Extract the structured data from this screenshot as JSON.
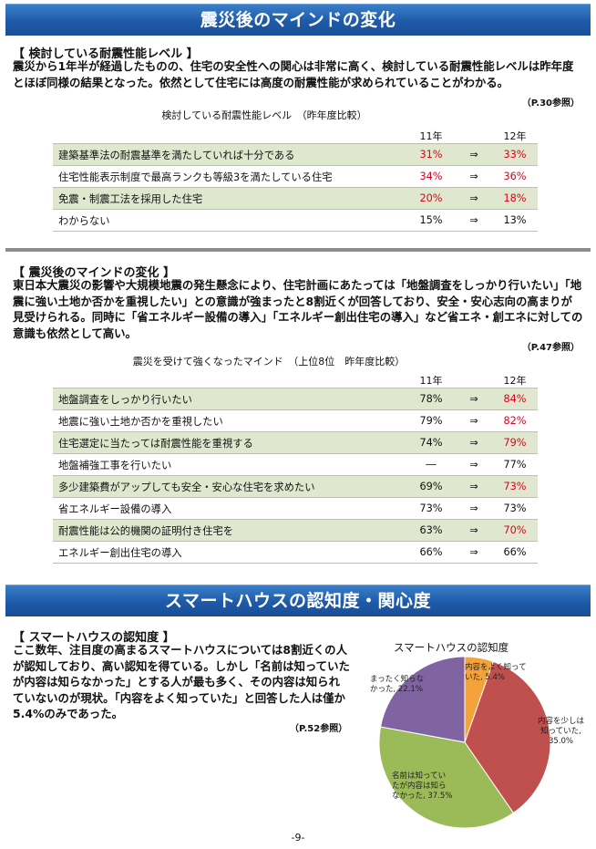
{
  "banner1": "震災後のマインドの変化",
  "sec1": {
    "title": "【 検討している耐震性能レベル 】",
    "para": "震災から1年半が経過したものの、住宅の安全性への関心は非常に高く、検討している耐震性能レベルは昨年度とほぼ同様の結果となった。依然として住宅には高度の耐震性能が求められていることがわかる。",
    "ref": "（P.30参照）",
    "caption": "検討している耐震性能レベル　（昨年度比較）",
    "col1": "11年",
    "col2": "12年",
    "rows": [
      {
        "label": "建築基準法の耐震基準を満たしていれば十分である",
        "v11": "31%",
        "arrow": "⇒",
        "v12": "33%"
      },
      {
        "label": "住宅性能表示制度で最高ランクも等級3を満たしている住宅",
        "v11": "34%",
        "arrow": "⇒",
        "v12": "36%"
      },
      {
        "label": "免震・制震工法を採用した住宅",
        "v11": "20%",
        "arrow": "⇒",
        "v12": "18%"
      },
      {
        "label": "わからない",
        "v11": "15%",
        "arrow": "⇒",
        "v12": "13%"
      }
    ]
  },
  "sec2": {
    "title": "【 震災後のマインドの変化 】",
    "para": "東日本大震災の影響や大規模地震の発生懸念により、住宅計画にあたっては「地盤調査をしっかり行いたい」「地震に強い土地か否かを重視したい」との意識が強まったと8割近くが回答しており、安全・安心志向の高まりが見受けられる。同時に「省エネルギー設備の導入」「エネルギー創出住宅の導入」など省エネ・創エネに対しての意識も依然として高い。",
    "ref": "（P.47参照）",
    "caption": "震災を受けて強くなったマインド　（上位8位　昨年度比較）",
    "col1": "11年",
    "col2": "12年",
    "rows": [
      {
        "label": "地盤調査をしっかり行いたい",
        "v11": "78%",
        "arrow": "⇒",
        "v12": "84%"
      },
      {
        "label": "地震に強い土地か否かを重視したい",
        "v11": "79%",
        "arrow": "⇒",
        "v12": "82%"
      },
      {
        "label": "住宅選定に当たっては耐震性能を重視する",
        "v11": "74%",
        "arrow": "⇒",
        "v12": "79%"
      },
      {
        "label": "地盤補強工事を行いたい",
        "v11": "―",
        "arrow": "⇒",
        "v12": "77%"
      },
      {
        "label": "多少建築費がアップしても安全・安心な住宅を求めたい",
        "v11": "69%",
        "arrow": "⇒",
        "v12": "73%"
      },
      {
        "label": "省エネルギー設備の導入",
        "v11": "73%",
        "arrow": "⇒",
        "v12": "73%"
      },
      {
        "label": "耐震性能は公的機関の証明付き住宅を",
        "v11": "63%",
        "arrow": "⇒",
        "v12": "70%"
      },
      {
        "label": "エネルギー創出住宅の導入",
        "v11": "66%",
        "arrow": "⇒",
        "v12": "66%"
      }
    ]
  },
  "banner2": "スマートハウスの認知度・関心度",
  "sec3": {
    "title": "【 スマートハウスの認知度 】",
    "para": "ここ数年、注目度の高まるスマートハウスについては8割近くの人が認知しており、高い認知を得ている。しかし「名前は知っていたが内容は知らなかった」とする人が最も多く、その内容は知られていないのが現状。「内容をよく知っていた」と回答した人は僅か5.4%のみであった。",
    "ref": "（P.52参照）"
  },
  "chart_data": {
    "type": "pie",
    "title": "スマートハウスの認知度",
    "slices": [
      {
        "label": "内容をよく知っていた",
        "value": 5.4,
        "text": "内容をよく知って\nいた, 5.4%",
        "color": "#f4a23a"
      },
      {
        "label": "内容を少しは知っていた",
        "value": 35.0,
        "text": "内容を少しは\n知っていた,\n35.0%",
        "color": "#c0504d"
      },
      {
        "label": "名前は知っていたが内容は知らなかった",
        "value": 37.5,
        "text": "名前は知ってい\nたが内容は知ら\nなかった, 37.5%",
        "color": "#9bbb59"
      },
      {
        "label": "まったく知らなかった",
        "value": 22.1,
        "text": "まったく知らな\nかった, 22.1%",
        "color": "#8064a2"
      }
    ]
  },
  "page_number": "-9-"
}
